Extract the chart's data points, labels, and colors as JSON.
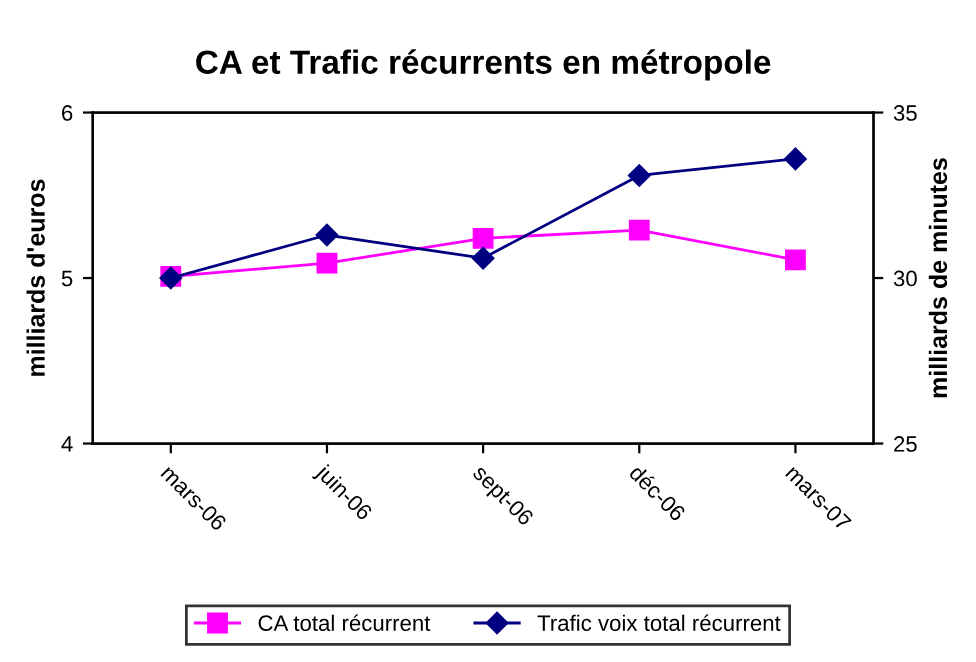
{
  "chart_data": {
    "type": "line",
    "title": "CA et Trafic récurrents en métropole",
    "ylabel": "milliards d'euros",
    "y2label": "milliards de minutes",
    "categories": [
      "mars-06",
      "juin-06",
      "sept-06",
      "déc-06",
      "mars-07"
    ],
    "series": [
      {
        "name": "CA total récurrent",
        "color": "#ff00ff",
        "marker": "square",
        "values": [
          5.01,
          5.09,
          5.24,
          5.29,
          5.11
        ]
      },
      {
        "name": "Trafic voix total récurrent",
        "color": "#000080",
        "marker": "diamond",
        "axis": "y2",
        "values": [
          30.0,
          31.3,
          30.6,
          33.1,
          33.6
        ]
      }
    ],
    "ylim": [
      4,
      6
    ],
    "yticks": [
      4,
      5,
      6
    ],
    "y2lim": [
      25,
      35
    ],
    "y2ticks": [
      25,
      30,
      35
    ],
    "grid": false,
    "legend": "bottom"
  }
}
